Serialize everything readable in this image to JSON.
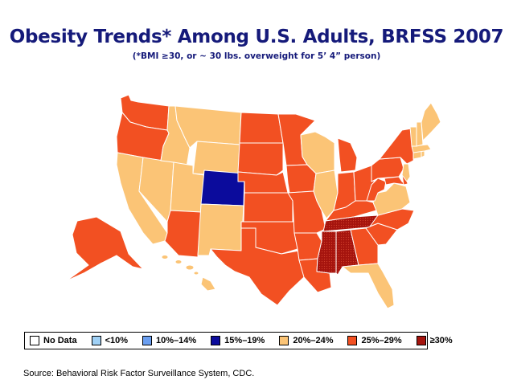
{
  "title": "Obesity Trends* Among U.S. Adults, BRFSS 2007",
  "subtitle": "(*BMI ≥30, or ~ 30 lbs. overweight for 5’ 4” person)",
  "source": "Source: Behavioral Risk Factor Surveillance System, CDC.",
  "legend": [
    {
      "label": "No Data",
      "color": "#ffffff"
    },
    {
      "label": "<10%",
      "color": "#9fd0f5"
    },
    {
      "label": "10%–14%",
      "color": "#6a9ef0"
    },
    {
      "label": "15%–19%",
      "color": "#0b0b9c"
    },
    {
      "label": "20%–24%",
      "color": "#fbc476"
    },
    {
      "label": "25%–29%",
      "color": "#f25022"
    },
    {
      "label": "≥30%",
      "color": "#a5140e"
    }
  ],
  "states": [
    {
      "name": "Washington",
      "category": "25%–29%"
    },
    {
      "name": "Oregon",
      "category": "25%–29%"
    },
    {
      "name": "California",
      "category": "20%–24%"
    },
    {
      "name": "Nevada",
      "category": "20%–24%"
    },
    {
      "name": "Idaho",
      "category": "20%–24%"
    },
    {
      "name": "Montana",
      "category": "20%–24%"
    },
    {
      "name": "Wyoming",
      "category": "20%–24%"
    },
    {
      "name": "Utah",
      "category": "20%–24%"
    },
    {
      "name": "Arizona",
      "category": "25%–29%"
    },
    {
      "name": "Colorado",
      "category": "15%–19%"
    },
    {
      "name": "New Mexico",
      "category": "20%–24%"
    },
    {
      "name": "North Dakota",
      "category": "25%–29%"
    },
    {
      "name": "South Dakota",
      "category": "25%–29%"
    },
    {
      "name": "Nebraska",
      "category": "25%–29%"
    },
    {
      "name": "Kansas",
      "category": "25%–29%"
    },
    {
      "name": "Oklahoma",
      "category": "25%–29%"
    },
    {
      "name": "Texas",
      "category": "25%–29%"
    },
    {
      "name": "Minnesota",
      "category": "25%–29%"
    },
    {
      "name": "Iowa",
      "category": "25%–29%"
    },
    {
      "name": "Missouri",
      "category": "25%–29%"
    },
    {
      "name": "Arkansas",
      "category": "25%–29%"
    },
    {
      "name": "Louisiana",
      "category": "25%–29%"
    },
    {
      "name": "Wisconsin",
      "category": "20%–24%"
    },
    {
      "name": "Illinois",
      "category": "20%–24%"
    },
    {
      "name": "Michigan",
      "category": "25%–29%"
    },
    {
      "name": "Indiana",
      "category": "25%–29%"
    },
    {
      "name": "Ohio",
      "category": "25%–29%"
    },
    {
      "name": "Kentucky",
      "category": "25%–29%"
    },
    {
      "name": "Tennessee",
      "category": "≥30%"
    },
    {
      "name": "Mississippi",
      "category": "≥30%"
    },
    {
      "name": "Alabama",
      "category": "≥30%"
    },
    {
      "name": "Georgia",
      "category": "25%–29%"
    },
    {
      "name": "Florida",
      "category": "20%–24%"
    },
    {
      "name": "South Carolina",
      "category": "25%–29%"
    },
    {
      "name": "North Carolina",
      "category": "25%–29%"
    },
    {
      "name": "Virginia",
      "category": "20%–24%"
    },
    {
      "name": "West Virginia",
      "category": "25%–29%"
    },
    {
      "name": "Pennsylvania",
      "category": "25%–29%"
    },
    {
      "name": "New York",
      "category": "25%–29%"
    },
    {
      "name": "Maryland",
      "category": "25%–29%"
    },
    {
      "name": "Delaware",
      "category": "25%–29%"
    },
    {
      "name": "New Jersey",
      "category": "20%–24%"
    },
    {
      "name": "Connecticut",
      "category": "20%–24%"
    },
    {
      "name": "Rhode Island",
      "category": "20%–24%"
    },
    {
      "name": "Massachusetts",
      "category": "20%–24%"
    },
    {
      "name": "Vermont",
      "category": "20%–24%"
    },
    {
      "name": "New Hampshire",
      "category": "20%–24%"
    },
    {
      "name": "Maine",
      "category": "20%–24%"
    },
    {
      "name": "Alaska",
      "category": "25%–29%"
    },
    {
      "name": "Hawaii",
      "category": "20%–24%"
    }
  ]
}
